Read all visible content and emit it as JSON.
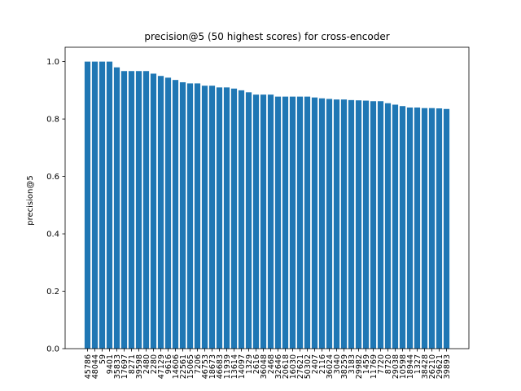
{
  "chart_data": {
    "type": "bar",
    "title": "precision@5 (50 highest scores) for cross-encoder",
    "xlabel": "",
    "ylabel": "precision@5",
    "ylim": [
      0,
      1.05
    ],
    "yticks": [
      "0.0",
      "0.2",
      "0.4",
      "0.6",
      "0.8",
      "1.0"
    ],
    "bar_color": "#1f77b4",
    "grid": false,
    "categories": [
      "45786",
      "48044",
      "59",
      "9401",
      "35833",
      "17697",
      "8271",
      "39598",
      "2480",
      "2280",
      "47129",
      "9616",
      "14606",
      "22561",
      "15065",
      "7206",
      "46753",
      "18673",
      "46683",
      "11939",
      "13614",
      "14097",
      "1329",
      "2616",
      "36048",
      "2468",
      "32646",
      "20618",
      "16030",
      "27621",
      "50302",
      "2407",
      "2116",
      "36024",
      "3040",
      "38259",
      "3183",
      "29982",
      "1459",
      "11769",
      "7720",
      "8720",
      "29038",
      "10598",
      "18944",
      "1327",
      "38428",
      "26210",
      "29621",
      "39893"
    ],
    "values": [
      1.0,
      1.0,
      1.0,
      1.0,
      0.98,
      0.967,
      0.967,
      0.967,
      0.967,
      0.958,
      0.95,
      0.944,
      0.936,
      0.928,
      0.924,
      0.924,
      0.916,
      0.916,
      0.91,
      0.91,
      0.906,
      0.9,
      0.893,
      0.885,
      0.885,
      0.885,
      0.878,
      0.878,
      0.878,
      0.878,
      0.878,
      0.875,
      0.872,
      0.87,
      0.868,
      0.868,
      0.866,
      0.865,
      0.864,
      0.862,
      0.862,
      0.855,
      0.85,
      0.845,
      0.84,
      0.84,
      0.838,
      0.838,
      0.837,
      0.835
    ]
  }
}
